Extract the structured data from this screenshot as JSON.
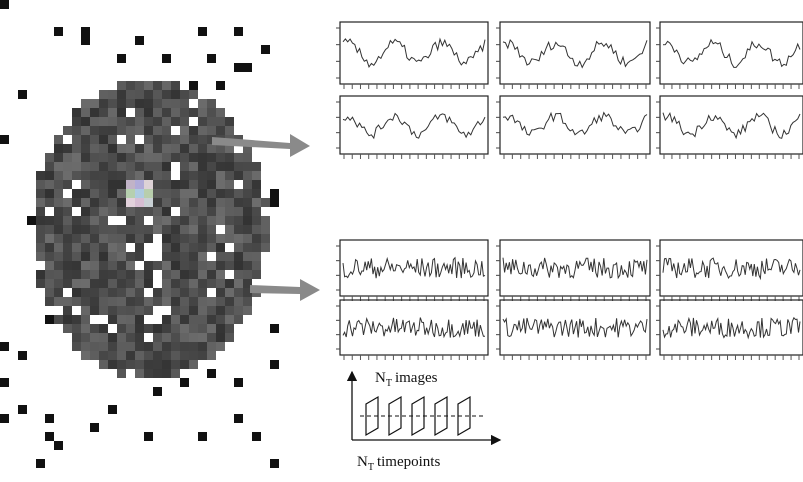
{
  "diagram": {
    "labels": [
      {
        "main": "N",
        "subscript": "T",
        "text": "images"
      },
      {
        "main": "N",
        "subscript": "T",
        "text": "timepoints"
      }
    ]
  }
}
